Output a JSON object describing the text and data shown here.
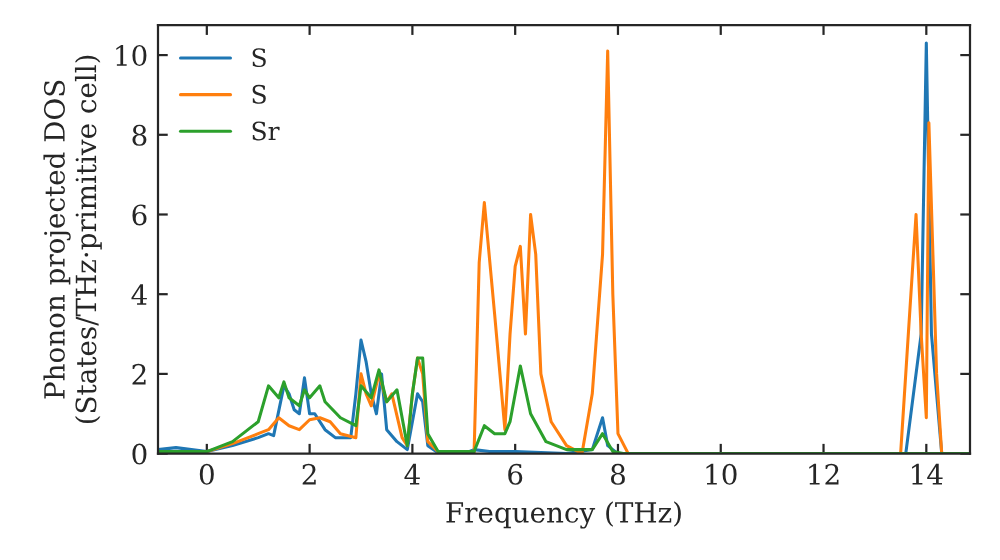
{
  "chart_data": {
    "type": "line",
    "xlabel": "Frequency (THz)",
    "ylabel": "Phonon projected DOS\n(States/THz·primitive cell)",
    "xlim": [
      -0.95,
      14.85
    ],
    "xticks": [
      0,
      2,
      4,
      6,
      8,
      10,
      12,
      14
    ],
    "ylim": [
      0,
      10.75
    ],
    "yticks": [
      0,
      2,
      4,
      6,
      8,
      10
    ],
    "grid": false,
    "legend": "top left",
    "series": [
      {
        "name": "S",
        "color": "#1f77b4",
        "x": [
          -0.95,
          -0.6,
          -0.3,
          0,
          0.5,
          1,
          1.2,
          1.3,
          1.5,
          1.6,
          1.7,
          1.8,
          1.9,
          2.0,
          2.1,
          2.3,
          2.5,
          2.8,
          2.9,
          3.0,
          3.1,
          3.2,
          3.3,
          3.4,
          3.5,
          3.7,
          3.9,
          4.0,
          4.1,
          4.2,
          4.3,
          4.5,
          5.0,
          5.2,
          5.5,
          6.0,
          7.0,
          7.5,
          7.7,
          7.8,
          8.0,
          13.6,
          13.9,
          14.0,
          14.1,
          14.3,
          14.85
        ],
        "values": [
          0.1,
          0.15,
          0.1,
          0.05,
          0.2,
          0.4,
          0.5,
          0.45,
          1.7,
          1.5,
          1.1,
          1.0,
          1.9,
          1.0,
          1.0,
          0.6,
          0.4,
          0.4,
          1.5,
          2.85,
          2.3,
          1.5,
          1.0,
          2.0,
          0.6,
          0.3,
          0.1,
          0.8,
          1.5,
          1.3,
          0.2,
          0.02,
          0,
          0.1,
          0.05,
          0.05,
          0,
          0.1,
          0.9,
          0.2,
          0,
          0,
          3,
          10.3,
          3,
          0,
          0
        ]
      },
      {
        "name": "S",
        "color": "#ff7f0e",
        "x": [
          -0.95,
          0,
          0.5,
          1.0,
          1.2,
          1.4,
          1.6,
          1.8,
          2.0,
          2.2,
          2.4,
          2.6,
          2.9,
          3.0,
          3.1,
          3.2,
          3.35,
          3.5,
          3.6,
          3.8,
          3.9,
          4.0,
          4.1,
          4.2,
          4.3,
          4.5,
          5.2,
          5.3,
          5.4,
          5.6,
          5.8,
          5.9,
          6.0,
          6.1,
          6.2,
          6.3,
          6.4,
          6.5,
          6.7,
          7.0,
          7.3,
          7.5,
          7.7,
          7.8,
          7.9,
          8.0,
          8.2,
          13.5,
          13.8,
          13.9,
          14.0,
          14.05,
          14.2,
          14.3,
          14.85
        ],
        "values": [
          0,
          0.05,
          0.25,
          0.5,
          0.6,
          0.9,
          0.7,
          0.6,
          0.85,
          0.9,
          0.8,
          0.5,
          0.4,
          2.0,
          1.5,
          1.2,
          2.0,
          1.3,
          1.5,
          0.4,
          0.2,
          1.5,
          2.4,
          2.0,
          0.3,
          0.05,
          0,
          4.8,
          6.3,
          3.5,
          0.6,
          3.0,
          4.7,
          5.2,
          3.0,
          6.0,
          5.0,
          2.0,
          0.8,
          0.2,
          0,
          1.5,
          5.0,
          10.1,
          4.0,
          0.5,
          0,
          0,
          6.0,
          3,
          0.9,
          8.3,
          2,
          0,
          0
        ]
      },
      {
        "name": "Sr",
        "color": "#2ca02c",
        "x": [
          -0.95,
          0,
          0.5,
          1.0,
          1.2,
          1.4,
          1.5,
          1.6,
          1.8,
          1.9,
          2.0,
          2.2,
          2.3,
          2.6,
          2.9,
          3.0,
          3.2,
          3.35,
          3.5,
          3.7,
          3.9,
          4.0,
          4.1,
          4.2,
          4.3,
          4.5,
          5.2,
          5.4,
          5.6,
          5.8,
          5.9,
          6.1,
          6.3,
          6.6,
          7.0,
          7.5,
          7.7,
          7.9,
          8.1,
          14.85
        ],
        "values": [
          0.05,
          0.05,
          0.3,
          0.8,
          1.7,
          1.4,
          1.8,
          1.4,
          1.2,
          1.6,
          1.4,
          1.7,
          1.3,
          0.9,
          0.7,
          1.7,
          1.4,
          2.1,
          1.3,
          1.6,
          0.2,
          1.5,
          2.4,
          2.4,
          0.5,
          0.05,
          0.05,
          0.7,
          0.5,
          0.5,
          0.8,
          2.2,
          1.0,
          0.3,
          0.1,
          0.1,
          0.5,
          0.05,
          0,
          0
        ]
      }
    ]
  }
}
